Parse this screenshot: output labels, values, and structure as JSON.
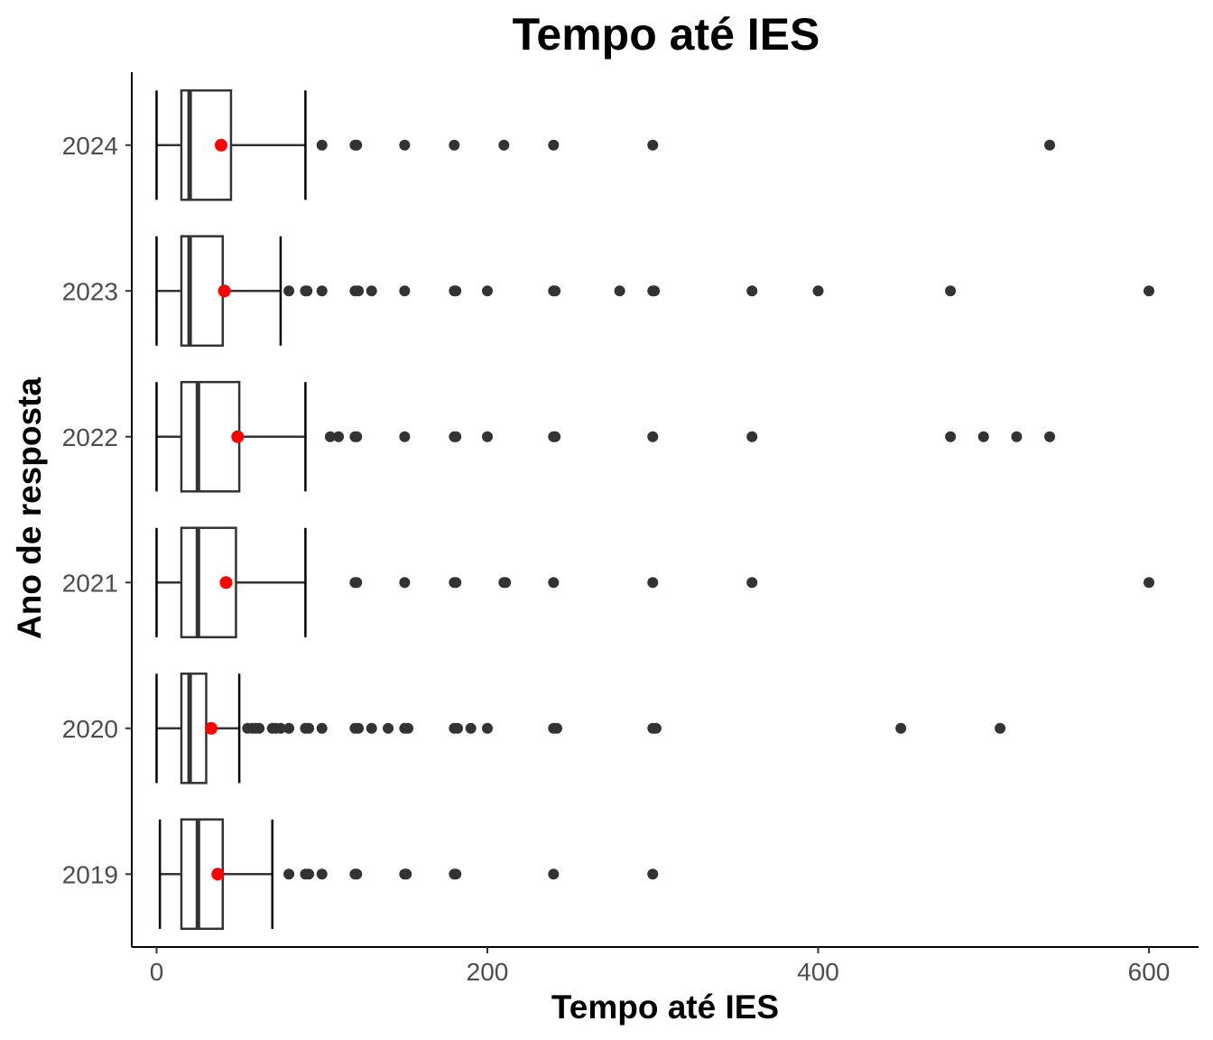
{
  "chart_data": {
    "type": "boxplot",
    "orientation": "horizontal",
    "title": "Tempo até IES",
    "xlabel": "Tempo até IES",
    "ylabel": "Ano de resposta",
    "xlim": [
      -15,
      630
    ],
    "xticks": [
      0,
      200,
      400,
      600
    ],
    "grid": false,
    "legend": "none",
    "categories": [
      "2019",
      "2020",
      "2021",
      "2022",
      "2023",
      "2024"
    ],
    "boxes": [
      {
        "category": "2019",
        "whisker_low": 2,
        "q1": 15,
        "median": 25,
        "q3": 40,
        "whisker_high": 70,
        "mean": 37,
        "outliers": [
          80,
          90,
          92,
          100,
          120,
          121,
          150,
          151,
          180,
          181,
          240,
          300
        ]
      },
      {
        "category": "2020",
        "whisker_low": 0,
        "q1": 15,
        "median": 20,
        "q3": 30,
        "whisker_high": 50,
        "mean": 33,
        "outliers": [
          55,
          58,
          60,
          62,
          70,
          72,
          75,
          80,
          90,
          92,
          100,
          120,
          122,
          130,
          140,
          150,
          152,
          180,
          182,
          190,
          200,
          240,
          242,
          300,
          302,
          450,
          510
        ]
      },
      {
        "category": "2021",
        "whisker_low": 0,
        "q1": 15,
        "median": 25,
        "q3": 48,
        "whisker_high": 90,
        "mean": 42,
        "outliers": [
          120,
          121,
          150,
          180,
          181,
          210,
          211,
          240,
          300,
          360,
          600
        ]
      },
      {
        "category": "2022",
        "whisker_low": 0,
        "q1": 15,
        "median": 25,
        "q3": 50,
        "whisker_high": 90,
        "mean": 49,
        "outliers": [
          105,
          110,
          120,
          121,
          150,
          180,
          181,
          200,
          240,
          241,
          300,
          360,
          480,
          500,
          520,
          540
        ]
      },
      {
        "category": "2023",
        "whisker_low": 0,
        "q1": 15,
        "median": 20,
        "q3": 40,
        "whisker_high": 75,
        "mean": 41,
        "outliers": [
          80,
          90,
          91,
          100,
          120,
          122,
          130,
          150,
          180,
          181,
          200,
          240,
          241,
          280,
          300,
          301,
          360,
          400,
          480,
          600
        ]
      },
      {
        "category": "2024",
        "whisker_low": 0,
        "q1": 15,
        "median": 20,
        "q3": 45,
        "whisker_high": 90,
        "mean": 39,
        "outliers": [
          100,
          120,
          121,
          150,
          180,
          210,
          240,
          300,
          540
        ]
      }
    ],
    "colors": {
      "box": "#333333",
      "outlier": "#333333",
      "mean": "#ff0000",
      "axis": "#000000",
      "tick_label": "#4d4d4d"
    }
  }
}
